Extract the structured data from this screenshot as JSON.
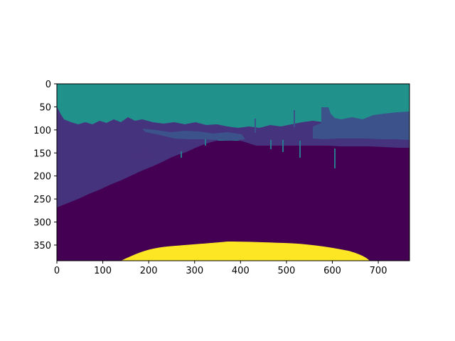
{
  "image": {
    "kind": "segmentation-mask",
    "colormap": "viridis",
    "colors": {
      "sky": "#21918c",
      "vegetation": "#46337e",
      "building": "#3b528b",
      "road": "#440154",
      "ego_vehicle": "#fde725",
      "pole": "#2a788e"
    }
  },
  "axes": {
    "x_range": [
      0,
      768
    ],
    "y_range": [
      384,
      0
    ],
    "x_ticks": [
      "0",
      "100",
      "200",
      "300",
      "400",
      "500",
      "600",
      "700"
    ],
    "y_ticks": [
      "0",
      "50",
      "100",
      "150",
      "200",
      "250",
      "300",
      "350"
    ]
  }
}
